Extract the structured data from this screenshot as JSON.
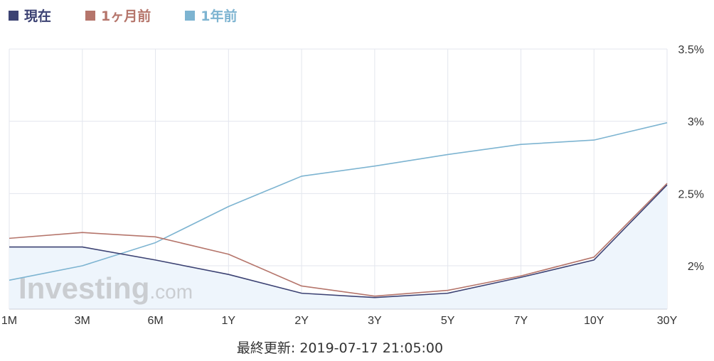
{
  "legend": [
    {
      "label": "現在",
      "color": "#3c4273"
    },
    {
      "label": "1ヶ月前",
      "color": "#b5756b"
    },
    {
      "label": "1年前",
      "color": "#7db4d1"
    }
  ],
  "watermark": {
    "brand": "Investing",
    "suffix": ".com"
  },
  "footer": "最終更新: 2019-07-17 21:05:00",
  "chart_data": {
    "type": "line",
    "categories": [
      "1M",
      "3M",
      "6M",
      "1Y",
      "2Y",
      "3Y",
      "5Y",
      "7Y",
      "10Y",
      "30Y"
    ],
    "series": [
      {
        "name": "現在",
        "color": "#3c4273",
        "area": true,
        "values": [
          2.13,
          2.13,
          2.04,
          1.94,
          1.81,
          1.78,
          1.81,
          1.92,
          2.04,
          2.56
        ]
      },
      {
        "name": "1ヶ月前",
        "color": "#b5756b",
        "values": [
          2.19,
          2.23,
          2.2,
          2.08,
          1.86,
          1.79,
          1.83,
          1.93,
          2.06,
          2.57
        ]
      },
      {
        "name": "1年前",
        "color": "#7db4d1",
        "values": [
          1.9,
          2.0,
          2.16,
          2.41,
          2.62,
          2.69,
          2.77,
          2.84,
          2.87,
          2.99
        ]
      }
    ],
    "yticks": [
      {
        "value": 2.0,
        "label": "2%"
      },
      {
        "value": 2.5,
        "label": "2.5%"
      },
      {
        "value": 3.0,
        "label": "3%"
      },
      {
        "value": 3.5,
        "label": "3.5%"
      }
    ],
    "ylim": [
      1.7,
      3.5
    ],
    "grid": true,
    "legend_position": "top-left",
    "area_fill": "#eef5fc"
  }
}
